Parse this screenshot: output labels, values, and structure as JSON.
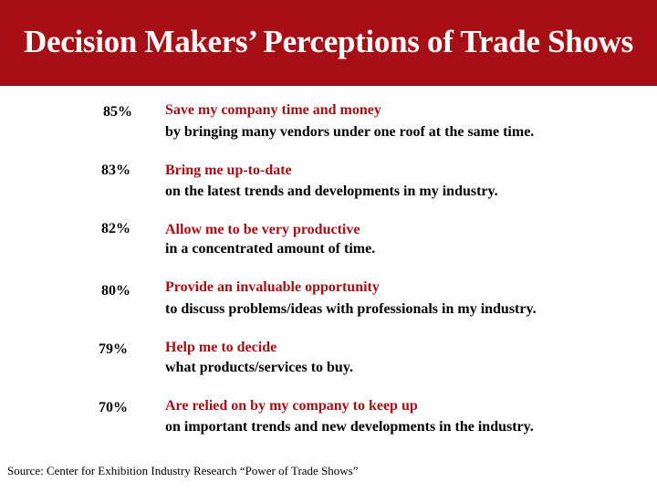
{
  "title": "Decision Makers’ Perceptions of Trade Shows",
  "colors": {
    "title_background": "#a50f15",
    "title_text": "#ffffff",
    "heading_text": "#a50f15",
    "body_text": "#000000"
  },
  "items": [
    {
      "percent": "85%",
      "heading": "Save my company time and money",
      "detail": "by bringing many vendors under one roof at the same time."
    },
    {
      "percent": "83%",
      "heading": "Bring me up-to-date",
      "detail": "on the latest trends and developments in my industry."
    },
    {
      "percent": "82%",
      "heading": "Allow me to be very productive",
      "detail": "in a concentrated amount of time."
    },
    {
      "percent": "80%",
      "heading": "Provide an invaluable opportunity",
      "detail": "to discuss problems/ideas with professionals in my industry."
    },
    {
      "percent": "79%",
      "heading": "Help me to decide",
      "detail": "what products/services to buy."
    },
    {
      "percent": "70%",
      "heading": "Are relied on by my company to keep up",
      "detail": "on important trends and new developments in the industry."
    }
  ],
  "source": "Source: Center for Exhibition Industry Research “Power of Trade Shows”"
}
